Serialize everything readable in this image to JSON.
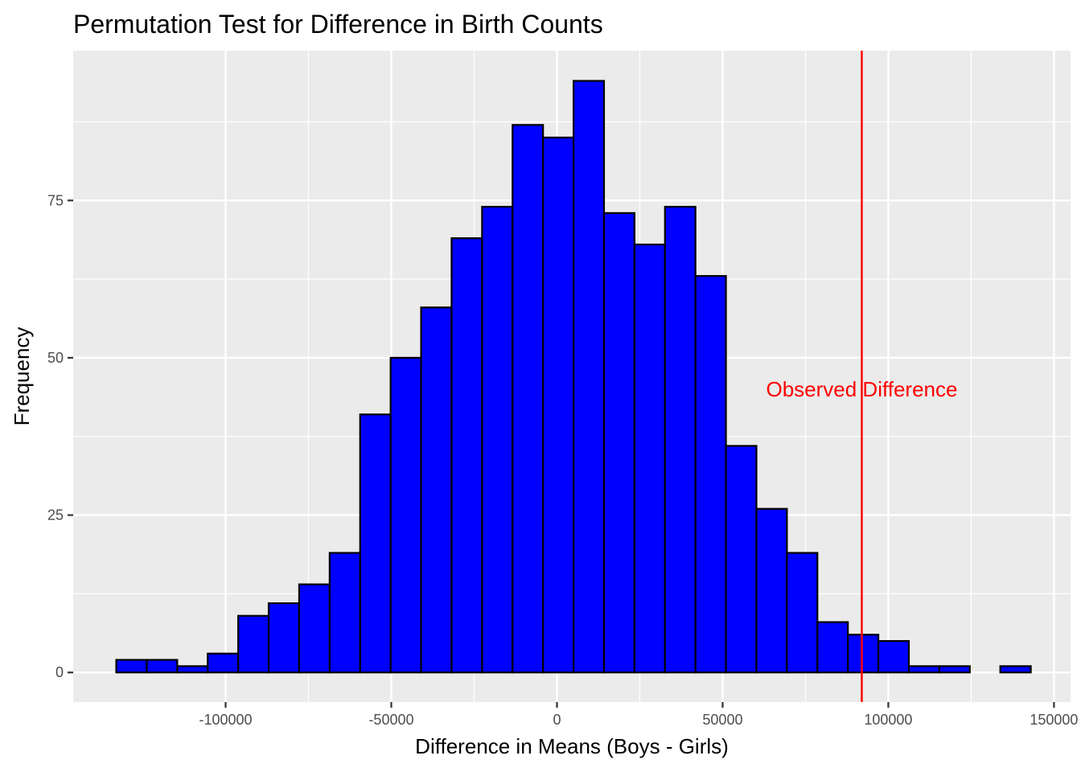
{
  "chart_data": {
    "type": "bar",
    "subtype": "histogram",
    "title": "Permutation Test for Difference in Birth Counts",
    "xlabel": "Difference in Means (Boys - Girls)",
    "ylabel": "Frequency",
    "x_ticks": [
      -100000,
      -50000,
      0,
      50000,
      100000,
      150000
    ],
    "x_tick_labels": [
      "-100000",
      "-50000",
      "0",
      "50000",
      "100000",
      "150000"
    ],
    "y_ticks": [
      0,
      25,
      50,
      75
    ],
    "y_tick_labels": [
      "0",
      "25",
      "50",
      "75"
    ],
    "xlim": [
      -146000,
      155000
    ],
    "ylim": [
      -4.7,
      98.8
    ],
    "bin_width": 9200,
    "bin_starts": [
      -133000,
      -123800,
      -114600,
      -105400,
      -96200,
      -87000,
      -77800,
      -68600,
      -59400,
      -50200,
      -41000,
      -31800,
      -22600,
      -13400,
      -4200,
      5000,
      14200,
      23400,
      32600,
      41800,
      51000,
      60200,
      69400,
      78600,
      87800,
      97000,
      106200,
      115400,
      124600,
      133800
    ],
    "values": [
      2,
      2,
      1,
      3,
      9,
      11,
      14,
      19,
      41,
      50,
      58,
      69,
      74,
      87,
      85,
      94,
      73,
      68,
      74,
      63,
      36,
      26,
      19,
      8,
      6,
      5,
      1,
      1,
      0,
      1
    ],
    "bar_color": "#0000ff",
    "bar_edge_color": "#000000",
    "observed_difference": 92000,
    "observed_line_color": "#ff0000",
    "annotation": {
      "text": "Observed Difference",
      "x": 92000,
      "y": 45,
      "color": "#ff0000"
    },
    "panel_background": "#ebebeb",
    "grid": true,
    "grid_color": "#ffffff"
  }
}
